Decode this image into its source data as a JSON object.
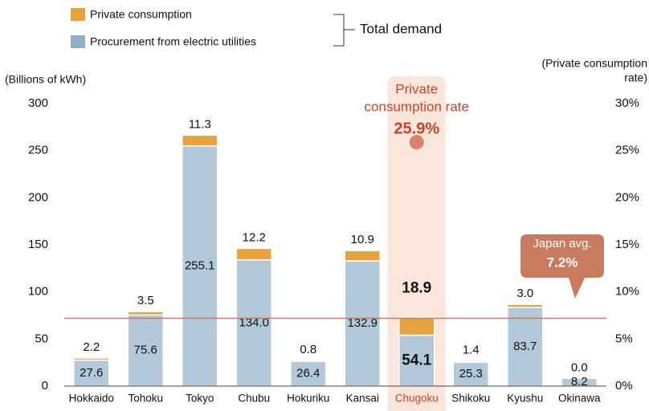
{
  "chart_data": {
    "type": "stacked_bar",
    "categories": [
      "Hokkaido",
      "Tohoku",
      "Tokyo",
      "Chubu",
      "Hokuriku",
      "Kansai",
      "Chugoku",
      "Shikoku",
      "Kyushu",
      "Okinawa"
    ],
    "series": [
      {
        "name": "Procurement from electric utilities",
        "color": "#b3c8d8",
        "legend_color": "#8fb0c8",
        "values": [
          27.6,
          75.6,
          255.1,
          134.0,
          26.4,
          132.9,
          54.1,
          25.3,
          83.7,
          8.2
        ],
        "value_labels": [
          "27.6",
          "75.6",
          "255.1",
          "134.0",
          "26.4",
          "132.9",
          "54.1",
          "25.3",
          "83.7",
          "8.2"
        ]
      },
      {
        "name": "Private consumption",
        "color": "#e8a23b",
        "values": [
          2.2,
          3.5,
          11.3,
          12.2,
          0.8,
          10.9,
          18.9,
          1.4,
          3.0,
          0.0
        ],
        "value_labels": [
          "2.2",
          "3.5",
          "11.3",
          "12.2",
          "0.8",
          "10.9",
          "18.9",
          "1.4",
          "3.0",
          "0.0"
        ]
      }
    ],
    "legend_group_label": "Total demand",
    "y_label": "(Billions of kWh)",
    "y2_label_lines": [
      "(Private consumption",
      "rate)"
    ],
    "ylim": [
      0,
      300
    ],
    "yticks": [
      0,
      50,
      100,
      150,
      200,
      250,
      300
    ],
    "y2lim": [
      0,
      30
    ],
    "y2ticks": [
      {
        "value": 0,
        "label": "0%"
      },
      {
        "value": 5,
        "label": "5%"
      },
      {
        "value": 10,
        "label": "10%"
      },
      {
        "value": 15,
        "label": "15%"
      },
      {
        "value": 20,
        "label": "20%"
      },
      {
        "value": 25,
        "label": "25%"
      },
      {
        "value": 30,
        "label": "30%"
      }
    ],
    "highlight": {
      "category": "Chugoku",
      "label_lines": [
        "Private",
        "consumption rate"
      ],
      "value": 25.9,
      "value_label": "25.9%",
      "axis": "y2",
      "color": "#c8452a"
    },
    "reference_line": {
      "label": "Japan avg.",
      "value": 7.2,
      "value_label": "7.2%",
      "axis": "y2",
      "color": "#c97b60"
    }
  }
}
